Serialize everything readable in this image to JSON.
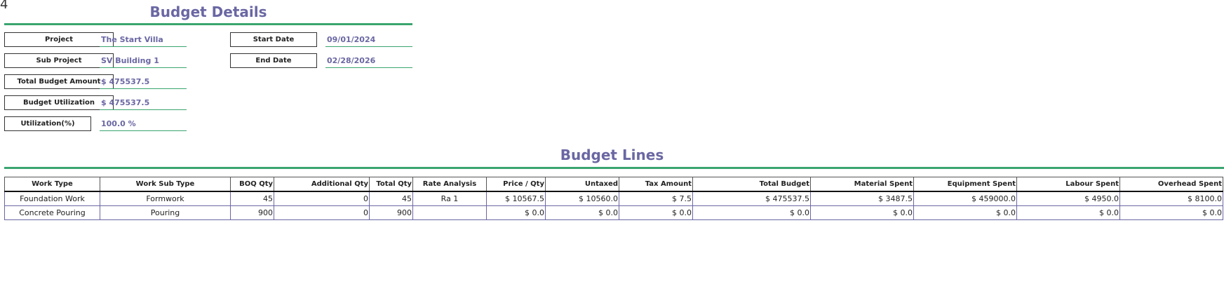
{
  "corner_mark": "4",
  "details": {
    "title": "Budget Details",
    "fields": {
      "project": {
        "label": "Project",
        "value": "The Start Villa"
      },
      "sub_project": {
        "label": "Sub Project",
        "value": "SV Building 1"
      },
      "total_budget": {
        "label": "Total Budget Amount",
        "value": "$ 475537.5"
      },
      "utilization": {
        "label": "Budget Utilization",
        "value": "$ 475537.5"
      },
      "utilization_pct": {
        "label": "Utilization(%)",
        "value": "100.0 %"
      },
      "start_date": {
        "label": "Start Date",
        "value": "09/01/2024"
      },
      "end_date": {
        "label": "End Date",
        "value": "02/28/2026"
      }
    }
  },
  "lines": {
    "title": "Budget Lines",
    "columns": [
      "Work Type",
      "Work Sub Type",
      "BOQ Qty",
      "Additional Qty",
      "Total Qty",
      "Rate Analysis",
      "Price / Qty",
      "Untaxed",
      "Tax Amount",
      "Total Budget",
      "Material Spent",
      "Equipment Spent",
      "Labour Spent",
      "Overhead Spent"
    ],
    "rows": [
      [
        "Foundation Work",
        "Formwork",
        "45",
        "0",
        "45",
        "Ra 1",
        "$ 10567.5",
        "$ 10560.0",
        "$ 7.5",
        "$ 475537.5",
        "$ 3487.5",
        "$ 459000.0",
        "$ 4950.0",
        "$ 8100.0"
      ],
      [
        "Concrete Pouring",
        "Pouring",
        "900",
        "0",
        "900",
        "",
        "$ 0.0",
        "$ 0.0",
        "$ 0.0",
        "$ 0.0",
        "$ 0.0",
        "$ 0.0",
        "$ 0.0",
        "$ 0.0"
      ]
    ]
  }
}
